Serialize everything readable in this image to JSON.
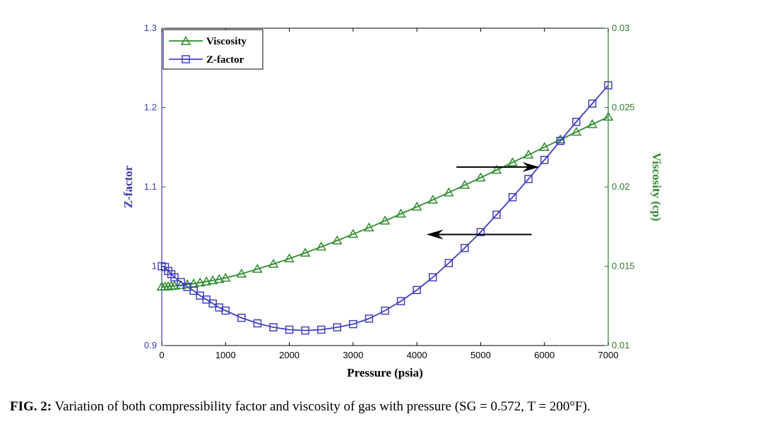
{
  "caption": {
    "label": "FIG. 2:",
    "text": " Variation of both compressibility factor and viscosity of gas with pressure (SG = 0.572, T = 200°F)."
  },
  "chart_data": {
    "type": "line",
    "xlabel": "Pressure (psia)",
    "ylabel_left": "Z-factor",
    "ylabel_right": "Viscosity (cp)",
    "xlim": [
      0,
      7000
    ],
    "ylim_left": [
      0.9,
      1.3
    ],
    "ylim_right": [
      0.01,
      0.03
    ],
    "x_ticks": [
      "0",
      "1000",
      "2000",
      "3000",
      "4000",
      "5000",
      "6000",
      "7000"
    ],
    "y_ticks_left": [
      "0.9",
      "1",
      "1.1",
      "1.2",
      "1.3"
    ],
    "y_ticks_right": [
      "0.01",
      "0.015",
      "0.02",
      "0.025",
      "0.03"
    ],
    "grid": false,
    "legend_position": "top-left",
    "colors": {
      "viscosity": "#2e8b2e",
      "zfactor": "#4040c0",
      "arrow": "#000000"
    },
    "x": [
      0,
      50,
      100,
      150,
      200,
      300,
      400,
      500,
      600,
      700,
      800,
      900,
      1000,
      1250,
      1500,
      1750,
      2000,
      2250,
      2500,
      2750,
      3000,
      3250,
      3500,
      3750,
      4000,
      4250,
      4500,
      4750,
      5000,
      5250,
      5500,
      5750,
      6000,
      6250,
      6500,
      6750,
      7000
    ],
    "series": [
      {
        "name": "Viscosity",
        "axis": "right",
        "marker": "triangle",
        "values": [
          0.0137,
          0.0137,
          0.01372,
          0.01374,
          0.01376,
          0.0138,
          0.01385,
          0.0139,
          0.01396,
          0.01403,
          0.0141,
          0.01418,
          0.01426,
          0.01452,
          0.01482,
          0.01514,
          0.01548,
          0.01584,
          0.01622,
          0.01661,
          0.01702,
          0.01743,
          0.01786,
          0.0183,
          0.01874,
          0.01918,
          0.01964,
          0.02011,
          0.02058,
          0.02106,
          0.02154,
          0.02202,
          0.0225,
          0.02298,
          0.02346,
          0.02394,
          0.02441
        ]
      },
      {
        "name": "Z-factor",
        "axis": "left",
        "marker": "square",
        "values": [
          1.0,
          0.999,
          0.994,
          0.99,
          0.986,
          0.98,
          0.974,
          0.969,
          0.963,
          0.958,
          0.953,
          0.948,
          0.944,
          0.935,
          0.928,
          0.923,
          0.92,
          0.919,
          0.92,
          0.923,
          0.927,
          0.934,
          0.944,
          0.956,
          0.97,
          0.986,
          1.004,
          1.023,
          1.043,
          1.065,
          1.087,
          1.11,
          1.134,
          1.158,
          1.182,
          1.205,
          1.228
        ]
      }
    ],
    "annotations": [
      {
        "type": "arrow",
        "direction": "right",
        "x": [
          4620,
          5920
        ],
        "y_axis": "left",
        "y": 1.125
      },
      {
        "type": "arrow",
        "direction": "left",
        "x": [
          5800,
          4150
        ],
        "y_axis": "left",
        "y": 1.04
      }
    ]
  }
}
